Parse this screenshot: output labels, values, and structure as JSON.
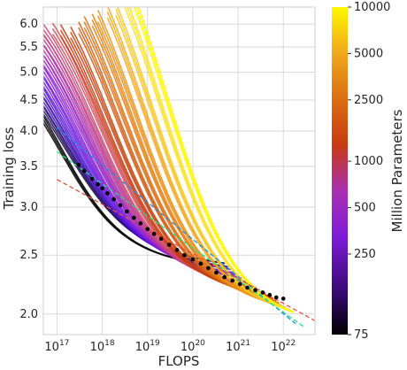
{
  "chart_data": {
    "type": "line",
    "xlabel": "FLOPS",
    "ylabel": "Training loss",
    "x_scale": "log",
    "y_scale": "log",
    "xlim": [
      5e+16,
      5e+22
    ],
    "ylim": [
      1.85,
      6.4
    ],
    "grid": true,
    "x_ticks": [
      {
        "value": 1e+17,
        "label": "10^17"
      },
      {
        "value": 1e+18,
        "label": "10^18"
      },
      {
        "value": 1e+19,
        "label": "10^19"
      },
      {
        "value": 1e+20,
        "label": "10^20"
      },
      {
        "value": 1e+21,
        "label": "10^21"
      },
      {
        "value": 1e+22,
        "label": "10^22"
      }
    ],
    "y_ticks": [
      {
        "value": 6.0,
        "label": "6.0"
      },
      {
        "value": 5.5,
        "label": "5.5"
      },
      {
        "value": 5.0,
        "label": "5.0"
      },
      {
        "value": 4.5,
        "label": "4.5"
      },
      {
        "value": 4.0,
        "label": "4.0"
      },
      {
        "value": 3.5,
        "label": "3.5"
      },
      {
        "value": 3.0,
        "label": "3.0"
      },
      {
        "value": 2.5,
        "label": "2.5"
      },
      {
        "value": 2.0,
        "label": "2.0"
      }
    ],
    "colorbar": {
      "label": "Million Parameters",
      "scale": "log",
      "range": [
        75,
        10000
      ],
      "colormap": "gnuplot",
      "ticks": [
        {
          "value": 10000,
          "label": "10000"
        },
        {
          "value": 5000,
          "label": "5000"
        },
        {
          "value": 2500,
          "label": "2500"
        },
        {
          "value": 1000,
          "label": "1000"
        },
        {
          "value": 500,
          "label": "500"
        },
        {
          "value": 250,
          "label": "250"
        },
        {
          "value": 75,
          "label": "75"
        }
      ]
    },
    "training_curve_models": [
      {
        "params_m": 75,
        "x_start": 5e+16,
        "x_end": 4e+20,
        "L_inf": 2.02,
        "A": 3.0,
        "x0": 6e+16,
        "width": 0.65,
        "color": "#000000"
      },
      {
        "params_m": 90,
        "x_start": 5e+16,
        "x_end": 5e+20,
        "L_inf": 2.05,
        "A": 3.1,
        "x0": 7e+16,
        "width": 0.6,
        "color": "#1a0a4a"
      },
      {
        "params_m": 110,
        "x_start": 5e+16,
        "x_end": 6e+20,
        "L_inf": 2.02,
        "A": 3.3,
        "x0": 8e+16,
        "width": 0.6,
        "color": "#3a0fa0"
      },
      {
        "params_m": 130,
        "x_start": 5e+16,
        "x_end": 7e+20,
        "L_inf": 2.0,
        "A": 3.5,
        "x0": 9e+16,
        "width": 0.6,
        "color": "#4a12c8"
      },
      {
        "params_m": 160,
        "x_start": 5e+16,
        "x_end": 8e+20,
        "L_inf": 1.97,
        "A": 3.7,
        "x0": 1.1e+17,
        "width": 0.6,
        "color": "#6515e0"
      },
      {
        "params_m": 200,
        "x_start": 5e+16,
        "x_end": 1e+21,
        "L_inf": 1.95,
        "A": 3.9,
        "x0": 1.3e+17,
        "width": 0.6,
        "color": "#7f1bd8"
      },
      {
        "params_m": 250,
        "x_start": 5e+16,
        "x_end": 1.2e+21,
        "L_inf": 1.93,
        "A": 4.1,
        "x0": 1.6e+17,
        "width": 0.6,
        "color": "#9524c6"
      },
      {
        "params_m": 320,
        "x_start": 5e+16,
        "x_end": 1.5e+21,
        "L_inf": 1.9,
        "A": 4.3,
        "x0": 1.9e+17,
        "width": 0.6,
        "color": "#a82fb0"
      },
      {
        "params_m": 400,
        "x_start": 5e+16,
        "x_end": 2e+21,
        "L_inf": 1.88,
        "A": 4.5,
        "x0": 2.3e+17,
        "width": 0.6,
        "color": "#b93a96"
      },
      {
        "params_m": 500,
        "x_start": 5e+16,
        "x_end": 2.5e+21,
        "L_inf": 1.86,
        "A": 4.7,
        "x0": 2.7e+17,
        "width": 0.6,
        "color": "#c8457a"
      },
      {
        "params_m": 650,
        "x_start": 8e+16,
        "x_end": 3e+21,
        "L_inf": 1.84,
        "A": 5.0,
        "x0": 3.3e+17,
        "width": 0.6,
        "color": "#d04f5a"
      },
      {
        "params_m": 800,
        "x_start": 1.2e+17,
        "x_end": 4e+21,
        "L_inf": 1.82,
        "A": 5.2,
        "x0": 4e+17,
        "width": 0.6,
        "color": "#c83a12"
      },
      {
        "params_m": 1000,
        "x_start": 2e+17,
        "x_end": 5e+21,
        "L_inf": 1.8,
        "A": 5.5,
        "x0": 5e+17,
        "width": 0.6,
        "color": "#c4420d"
      },
      {
        "params_m": 1300,
        "x_start": 3e+17,
        "x_end": 6e+21,
        "L_inf": 1.78,
        "A": 5.8,
        "x0": 7e+17,
        "width": 0.6,
        "color": "#d05a10"
      },
      {
        "params_m": 1600,
        "x_start": 4e+17,
        "x_end": 7e+21,
        "L_inf": 1.76,
        "A": 6.1,
        "x0": 9e+17,
        "width": 0.6,
        "color": "#db6e12"
      },
      {
        "params_m": 2000,
        "x_start": 6e+17,
        "x_end": 8e+21,
        "L_inf": 1.74,
        "A": 6.4,
        "x0": 1.2e+18,
        "width": 0.6,
        "color": "#e38015"
      },
      {
        "params_m": 2500,
        "x_start": 8e+17,
        "x_end": 9e+21,
        "L_inf": 1.72,
        "A": 6.7,
        "x0": 1.5e+18,
        "width": 0.6,
        "color": "#ea9218"
      },
      {
        "params_m": 3500,
        "x_start": 1.3e+18,
        "x_end": 1.1e+22,
        "L_inf": 1.7,
        "A": 7.1,
        "x0": 2.2e+18,
        "width": 0.6,
        "color": "#f0a81c"
      },
      {
        "params_m": 5000,
        "x_start": 2e+18,
        "x_end": 1.3e+22,
        "L_inf": 1.68,
        "A": 7.5,
        "x0": 3e+18,
        "width": 0.6,
        "color": "#f6c520"
      },
      {
        "params_m": 7000,
        "x_start": 3e+18,
        "x_end": 1.5e+22,
        "L_inf": 1.66,
        "A": 8.0,
        "x0": 4.5e+18,
        "width": 0.6,
        "color": "#fae024"
      },
      {
        "params_m": 10000,
        "x_start": 4e+18,
        "x_end": 1.7e+22,
        "L_inf": 1.64,
        "A": 8.5,
        "x0": 6e+18,
        "width": 0.6,
        "color": "#fff700"
      }
    ],
    "fit_lines": [
      {
        "color": "#1f8fe0",
        "points": [
          [
            1e+17,
            4.05
          ],
          [
            2e+22,
            1.92
          ]
        ]
      },
      {
        "color": "#22e08a",
        "points": [
          [
            1e+17,
            3.7
          ],
          [
            3e+22,
            1.9
          ]
        ]
      },
      {
        "color": "#e8503a",
        "points": [
          [
            1e+17,
            3.33
          ],
          [
            5e+22,
            1.95
          ]
        ]
      }
    ],
    "frontier_points": [
      [
        3e+17,
        3.52
      ],
      [
        4e+17,
        3.44
      ],
      [
        6e+17,
        3.34
      ],
      [
        8e+17,
        3.27
      ],
      [
        1e+18,
        3.22
      ],
      [
        1.3e+18,
        3.16
      ],
      [
        1.8e+18,
        3.09
      ],
      [
        2.5e+18,
        3.02
      ],
      [
        3.5e+18,
        2.95
      ],
      [
        5e+18,
        2.88
      ],
      [
        7e+18,
        2.82
      ],
      [
        1e+19,
        2.76
      ],
      [
        1.4e+19,
        2.71
      ],
      [
        2e+19,
        2.66
      ],
      [
        3e+19,
        2.6
      ],
      [
        4.5e+19,
        2.55
      ],
      [
        6.5e+19,
        2.5
      ],
      [
        1e+20,
        2.46
      ],
      [
        1.5e+20,
        2.42
      ],
      [
        2.2e+20,
        2.38
      ],
      [
        3.3e+20,
        2.34
      ],
      [
        5e+20,
        2.3
      ],
      [
        7.5e+20,
        2.27
      ],
      [
        1.1e+21,
        2.24
      ],
      [
        1.6e+21,
        2.21
      ],
      [
        2.4e+21,
        2.19
      ],
      [
        3.5e+21,
        2.17
      ],
      [
        5e+21,
        2.15
      ],
      [
        7e+21,
        2.13
      ],
      [
        1e+22,
        2.12
      ]
    ]
  }
}
